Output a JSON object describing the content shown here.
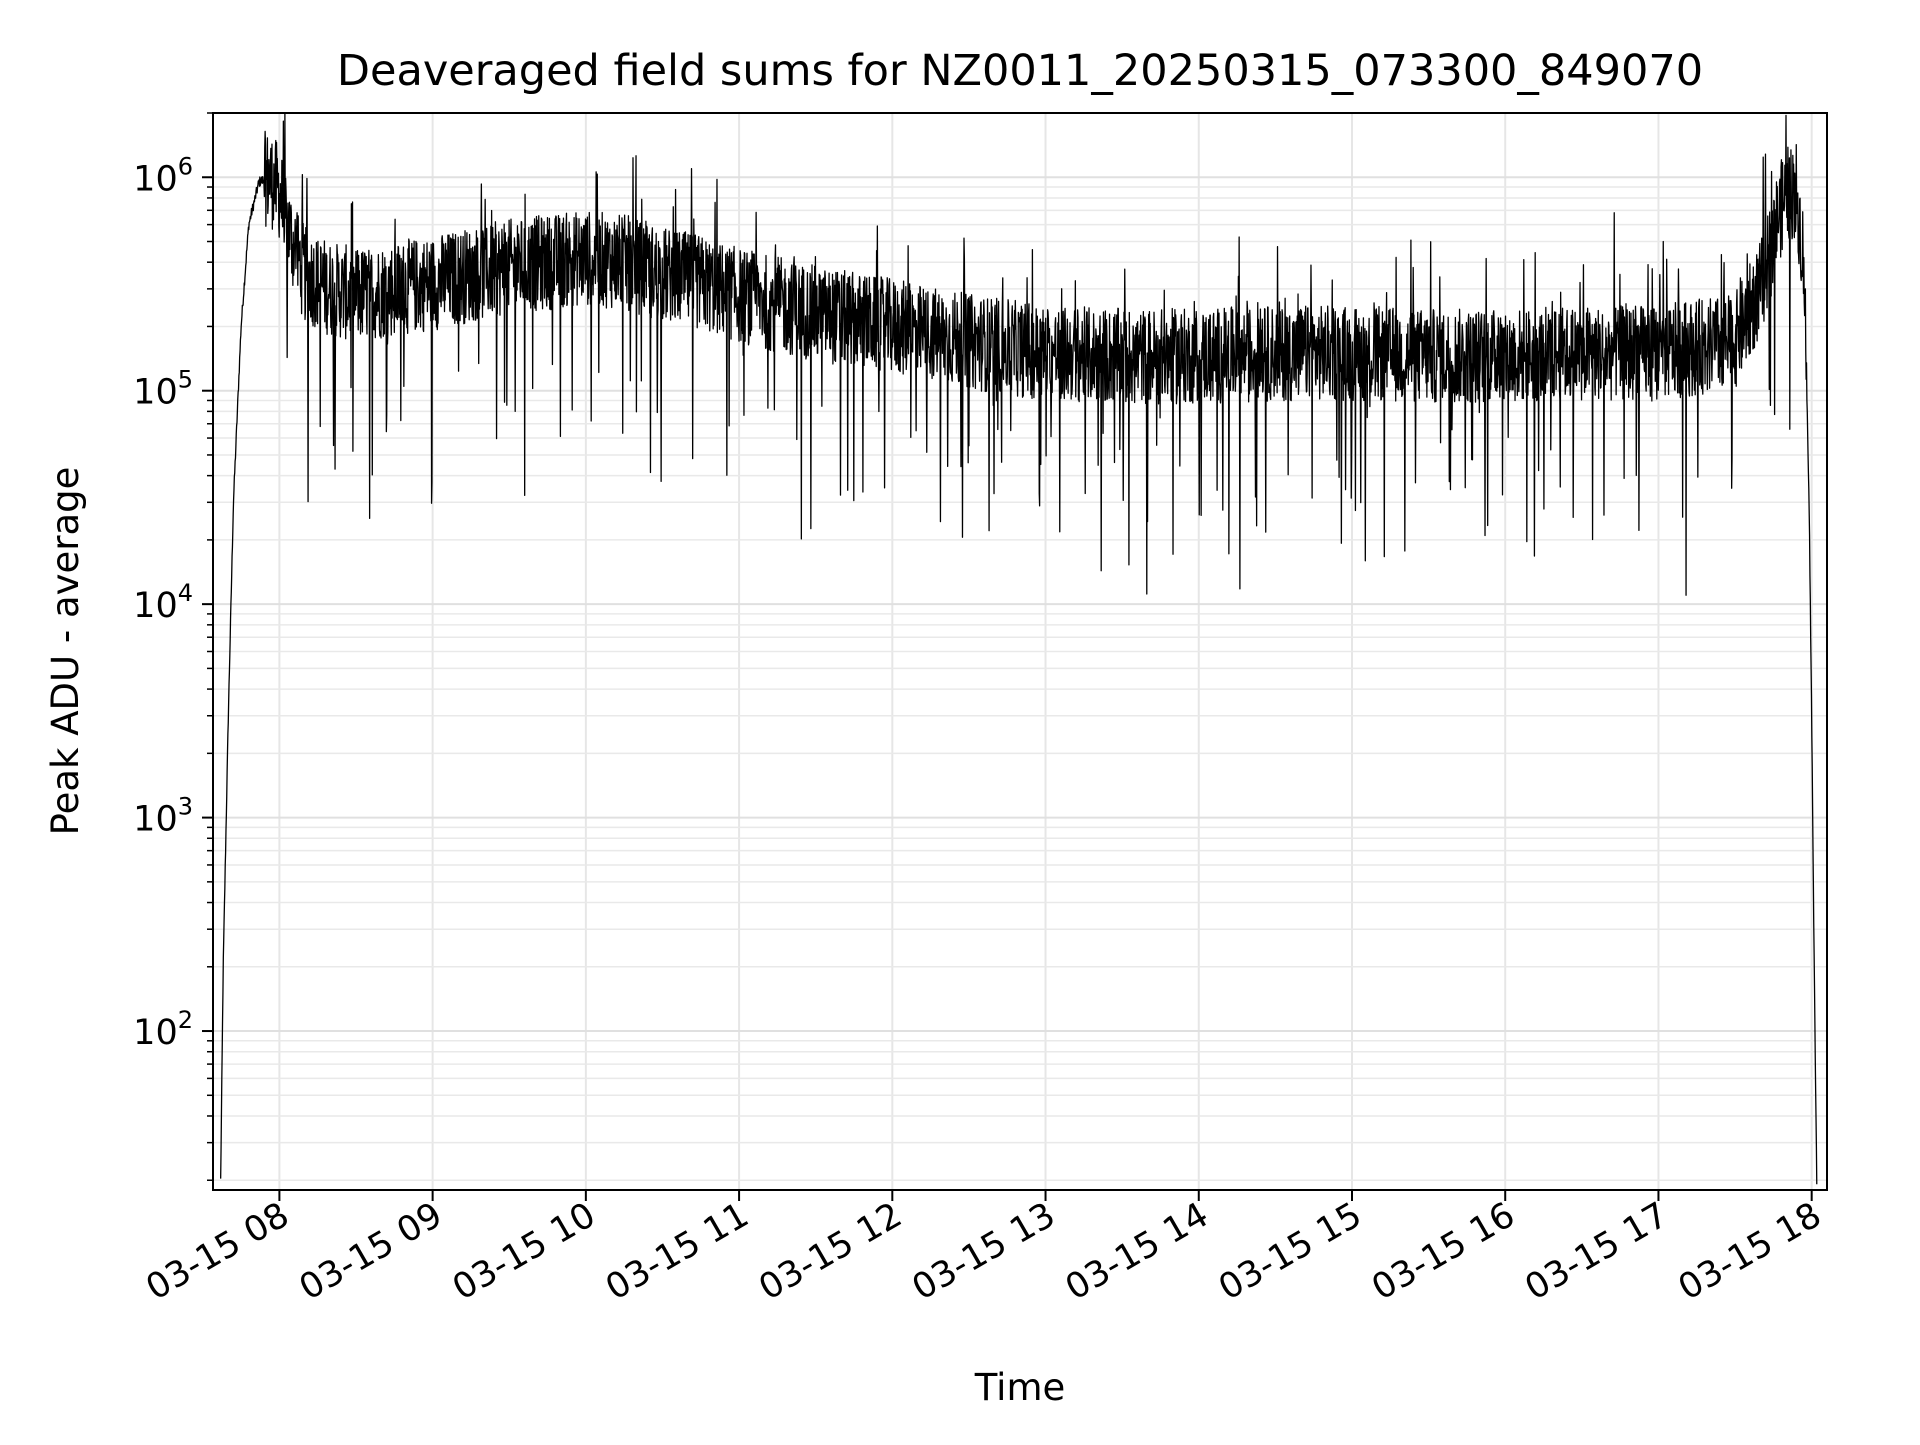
{
  "chart_data": {
    "type": "line",
    "title": "Deaveraged field sums for NZ0011_20250315_073300_849070",
    "xlabel": "Time",
    "ylabel": "Peak ADU - average",
    "y_scale": "log",
    "ylim": [
      18,
      2000000
    ],
    "xlim": [
      "2025-03-15 07:34",
      "2025-03-15 18:06"
    ],
    "grid": true,
    "x_ticks": [
      {
        "label": "03-15 08",
        "time": "2025-03-15 08:00"
      },
      {
        "label": "03-15 09",
        "time": "2025-03-15 09:00"
      },
      {
        "label": "03-15 10",
        "time": "2025-03-15 10:00"
      },
      {
        "label": "03-15 11",
        "time": "2025-03-15 11:00"
      },
      {
        "label": "03-15 12",
        "time": "2025-03-15 12:00"
      },
      {
        "label": "03-15 13",
        "time": "2025-03-15 13:00"
      },
      {
        "label": "03-15 14",
        "time": "2025-03-15 14:00"
      },
      {
        "label": "03-15 15",
        "time": "2025-03-15 15:00"
      },
      {
        "label": "03-15 16",
        "time": "2025-03-15 16:00"
      },
      {
        "label": "03-15 17",
        "time": "2025-03-15 17:00"
      },
      {
        "label": "03-15 18",
        "time": "2025-03-15 18:00"
      }
    ],
    "y_ticks": [
      {
        "base": "10",
        "exp": "2",
        "value": 100
      },
      {
        "base": "10",
        "exp": "3",
        "value": 1000
      },
      {
        "base": "10",
        "exp": "4",
        "value": 10000
      },
      {
        "base": "10",
        "exp": "5",
        "value": 100000
      },
      {
        "base": "10",
        "exp": "6",
        "value": 1000000
      }
    ],
    "series": [
      {
        "color": "#000000",
        "x": [
          "2025-03-15 07:37",
          "2025-03-15 07:38",
          "2025-03-15 07:40",
          "2025-03-15 07:42",
          "2025-03-15 07:45",
          "2025-03-15 07:48",
          "2025-03-15 07:52",
          "2025-03-15 07:56",
          "2025-03-15 08:00",
          "2025-03-15 08:05",
          "2025-03-15 08:10",
          "2025-03-15 08:20",
          "2025-03-15 08:30",
          "2025-03-15 08:45",
          "2025-03-15 09:00",
          "2025-03-15 09:15",
          "2025-03-15 09:30",
          "2025-03-15 09:45",
          "2025-03-15 10:00",
          "2025-03-15 10:15",
          "2025-03-15 10:30",
          "2025-03-15 10:45",
          "2025-03-15 11:00",
          "2025-03-15 11:30",
          "2025-03-15 12:00",
          "2025-03-15 12:30",
          "2025-03-15 13:00",
          "2025-03-15 13:30",
          "2025-03-15 14:00",
          "2025-03-15 14:30",
          "2025-03-15 15:00",
          "2025-03-15 15:30",
          "2025-03-15 16:00",
          "2025-03-15 16:30",
          "2025-03-15 17:00",
          "2025-03-15 17:30",
          "2025-03-15 17:40",
          "2025-03-15 17:46",
          "2025-03-15 17:50",
          "2025-03-15 17:54",
          "2025-03-15 17:57",
          "2025-03-15 17:59",
          "2025-03-15 18:00",
          "2025-03-15 18:01",
          "2025-03-15 18:02"
        ],
        "y": [
          20,
          200,
          3000,
          30000,
          200000,
          600000,
          950000,
          1000000,
          850000,
          500000,
          350000,
          300000,
          280000,
          300000,
          320000,
          350000,
          380000,
          400000,
          420000,
          400000,
          350000,
          320000,
          280000,
          230000,
          200000,
          170000,
          150000,
          145000,
          145000,
          150000,
          150000,
          145000,
          145000,
          150000,
          150000,
          170000,
          300000,
          600000,
          850000,
          850000,
          400000,
          30000,
          3000,
          200,
          20
        ]
      }
    ]
  }
}
